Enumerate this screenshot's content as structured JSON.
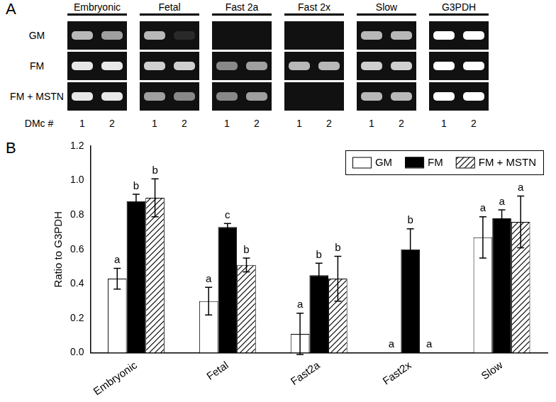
{
  "panel_a": {
    "label": "A",
    "rows": [
      "GM",
      "FM",
      "FM + MSTN"
    ],
    "lane_row_label": "DMc #",
    "lanes": [
      "1",
      "2"
    ],
    "columns": [
      {
        "name": "Embryonic",
        "bands": [
          [
            0.7,
            0.6
          ],
          [
            0.9,
            0.9
          ],
          [
            0.9,
            0.9
          ]
        ]
      },
      {
        "name": "Fetal",
        "bands": [
          [
            0.7,
            0.1
          ],
          [
            0.8,
            0.8
          ],
          [
            0.6,
            0.5
          ]
        ]
      },
      {
        "name": "Fast 2a",
        "bands": [
          [
            0,
            0
          ],
          [
            0.5,
            0.6
          ],
          [
            0.5,
            0.6
          ]
        ]
      },
      {
        "name": "Fast 2x",
        "bands": [
          [
            0,
            0
          ],
          [
            0.7,
            0.7
          ],
          [
            0,
            0
          ]
        ]
      },
      {
        "name": "Slow",
        "bands": [
          [
            0.7,
            0.7
          ],
          [
            0.8,
            0.8
          ],
          [
            0.7,
            0.7
          ]
        ]
      },
      {
        "name": "G3PDH",
        "bands": [
          [
            1,
            1
          ],
          [
            1,
            1
          ],
          [
            1,
            1
          ]
        ]
      }
    ]
  },
  "chart_data": {
    "type": "bar",
    "panel_label": "B",
    "y_label": "Ratio to G3PDH",
    "categories": [
      "Embryonic",
      "Fetal",
      "Fast2a",
      "Fast2x",
      "Slow"
    ],
    "series": [
      {
        "name": "GM",
        "color": "#ffffff",
        "marker": "solid",
        "values": [
          0.43,
          0.3,
          0.11,
          0,
          0.67
        ],
        "errors": [
          0.06,
          0.08,
          0.12,
          0,
          0.12
        ],
        "letters": [
          "a",
          "a",
          "a",
          "a",
          "a"
        ]
      },
      {
        "name": "FM",
        "color": "#000000",
        "marker": "solid",
        "values": [
          0.88,
          0.73,
          0.45,
          0.6,
          0.78
        ],
        "errors": [
          0.04,
          0.02,
          0.07,
          0.12,
          0.05
        ],
        "letters": [
          "b",
          "c",
          "b",
          "b",
          "a"
        ]
      },
      {
        "name": "FM + MSTN",
        "color": "#ffffff",
        "marker": "hatch",
        "values": [
          0.9,
          0.51,
          0.43,
          0,
          0.76
        ],
        "errors": [
          0.11,
          0.04,
          0.13,
          0,
          0.15
        ],
        "letters": [
          "b",
          "b",
          "b",
          "a",
          "a"
        ]
      }
    ],
    "ylim": [
      0,
      1.2
    ],
    "yticks": [
      {
        "value": 0,
        "label": "0.0"
      },
      0.2,
      0.4,
      0.6,
      0.8,
      {
        "value": 1,
        "label": "1.0"
      },
      1.2
    ],
    "grid": false,
    "legend": "upper right"
  }
}
